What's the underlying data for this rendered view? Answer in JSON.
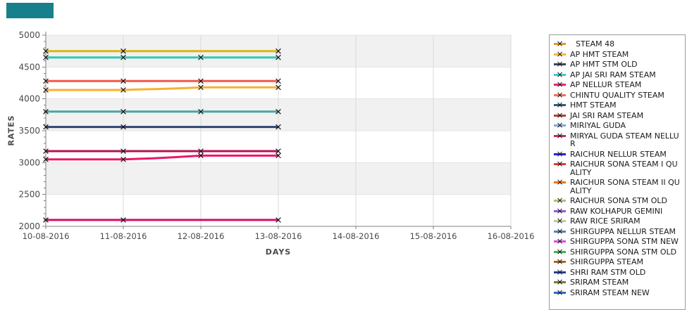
{
  "badge": {
    "color": "#18808a"
  },
  "chart_data": {
    "type": "line",
    "title": "",
    "xlabel": "DAYS",
    "ylabel": "RATES",
    "x_ticks": [
      "10-08-2016",
      "11-08-2016",
      "12-08-2016",
      "13-08-2016",
      "14-08-2016",
      "15-08-2016",
      "16-08-2016"
    ],
    "y_ticks": [
      2000,
      2500,
      3000,
      3500,
      4000,
      4500,
      5000
    ],
    "ylim": [
      2000,
      5000
    ],
    "y_minor_step": 100,
    "grid": "on",
    "legend_position": "right",
    "data_dates": [
      "10-08-2016",
      "11-08-2016",
      "12-08-2016",
      "13-08-2016"
    ],
    "series": [
      {
        "id": "line-4750",
        "color": "#dfb40d",
        "values": [
          4750,
          4750,
          4750,
          4750
        ],
        "steps": [
          [
            0,
            4750
          ],
          [
            3,
            4750
          ]
        ],
        "markers": [
          0,
          1,
          3
        ]
      },
      {
        "id": "line-4650",
        "color": "#2fc8ba",
        "values": [
          4650,
          4650,
          4650,
          4650
        ],
        "steps": [
          [
            0,
            4650
          ],
          [
            3,
            4650
          ]
        ],
        "markers": [
          0,
          1,
          2,
          3
        ]
      },
      {
        "id": "line-4280",
        "color": "#f0594a",
        "values": [
          4280,
          4280,
          4280,
          4280
        ],
        "steps": [
          [
            0,
            4280
          ],
          [
            3,
            4280
          ]
        ],
        "markers": [
          0,
          1,
          2,
          3
        ]
      },
      {
        "id": "line-4140-4180",
        "color": "#f9b02f",
        "values": [
          4140,
          4140,
          4180,
          4180
        ],
        "steps": [
          [
            0,
            4140
          ],
          [
            1,
            4140
          ],
          [
            1.15,
            4146
          ],
          [
            1.4,
            4154
          ],
          [
            1.65,
            4163
          ],
          [
            1.85,
            4172
          ],
          [
            2,
            4180
          ],
          [
            3,
            4180
          ]
        ],
        "markers": [
          0,
          1,
          2,
          3
        ]
      },
      {
        "id": "line-3800",
        "color": "#48a7a1",
        "values": [
          3800,
          3800,
          3800,
          3800
        ],
        "steps": [
          [
            0,
            3800
          ],
          [
            3,
            3800
          ]
        ],
        "markers": [
          0,
          1,
          2,
          3
        ]
      },
      {
        "id": "line-3560",
        "color": "#2f4374",
        "values": [
          3560,
          3560,
          3560,
          3560
        ],
        "steps": [
          [
            0,
            3560
          ],
          [
            3,
            3560
          ]
        ],
        "markers": [
          0,
          1,
          3
        ]
      },
      {
        "id": "line-3180",
        "color": "#b21455",
        "values": [
          3180,
          3180,
          3180,
          3180
        ],
        "steps": [
          [
            0,
            3180
          ],
          [
            3,
            3180
          ]
        ],
        "markers": [
          0,
          1,
          2,
          3
        ]
      },
      {
        "id": "line-3050-3110",
        "color": "#ea1768",
        "values": [
          3050,
          3050,
          3110,
          3110
        ],
        "steps": [
          [
            0,
            3050
          ],
          [
            1,
            3050
          ],
          [
            1.12,
            3056
          ],
          [
            1.38,
            3068
          ],
          [
            1.62,
            3082
          ],
          [
            1.85,
            3098
          ],
          [
            2,
            3110
          ],
          [
            3,
            3110
          ]
        ],
        "markers": [
          0,
          1,
          2,
          3
        ]
      },
      {
        "id": "line-2100",
        "color": "#da0a6b",
        "values": [
          2100,
          2100,
          2100,
          2100
        ],
        "steps": [
          [
            0,
            2100
          ],
          [
            3,
            2100
          ]
        ],
        "markers": [
          0,
          1,
          3
        ]
      }
    ],
    "legend": [
      {
        "label": "STEAM 48",
        "color": "#ef9227"
      },
      {
        "label": "AP HMT STEAM",
        "color": "#f8b43c"
      },
      {
        "label": "AP HMT STM OLD",
        "color": "#3a4663"
      },
      {
        "label": "AP JAI SRI RAM STEAM",
        "color": "#35cfc0"
      },
      {
        "label": "AP NELLUR STEAM",
        "color": "#e8256e"
      },
      {
        "label": "CHINTU QUALITY STEAM",
        "color": "#f37150"
      },
      {
        "label": "HMT STEAM",
        "color": "#2a5d80"
      },
      {
        "label": "JAI SRI RAM STEAM",
        "color": "#bb3a2e"
      },
      {
        "label": "MIRIYAL GUDA",
        "color": "#7fa8d9"
      },
      {
        "label": "MIRYAL GUDA STEAM NELLUR",
        "color": "#b43064"
      },
      {
        "label": "RAICHUR NELLUR STEAM",
        "color": "#2222dd"
      },
      {
        "label": "RAICHUR SONA STEAM I QUALITY",
        "color": "#dd3b33"
      },
      {
        "label": "RAICHUR SONA STEAM II QUALITY",
        "color": "#e5761f"
      },
      {
        "label": "RAICHUR SONA STM OLD",
        "color": "#c0ba72"
      },
      {
        "label": "RAW KOLHAPUR GEMINI",
        "color": "#9a55e2"
      },
      {
        "label": "RAW RICE SRIRAM",
        "color": "#bcc8a2"
      },
      {
        "label": "SHIRGUPPA NELLUR STEAM",
        "color": "#4f86b8"
      },
      {
        "label": "SHIRGUPPA SONA STM NEW",
        "color": "#de4be0"
      },
      {
        "label": "SHIRGUPPA SONA STM OLD",
        "color": "#3bb34a"
      },
      {
        "label": "SHIRGUPPA STEAM",
        "color": "#ad6420"
      },
      {
        "label": "SHRI RAM STM OLD",
        "color": "#24409c"
      },
      {
        "label": "SRIRAM STEAM",
        "color": "#72803f"
      },
      {
        "label": "SRIRAM STEAM NEW",
        "color": "#3366cc"
      }
    ]
  }
}
